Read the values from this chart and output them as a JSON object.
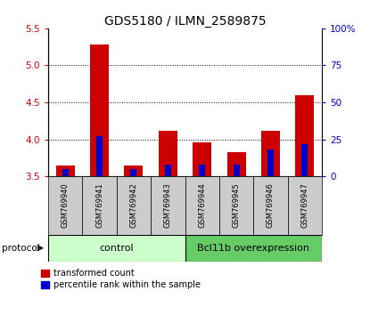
{
  "title": "GDS5180 / ILMN_2589875",
  "samples": [
    "GSM769940",
    "GSM769941",
    "GSM769942",
    "GSM769943",
    "GSM769944",
    "GSM769945",
    "GSM769946",
    "GSM769947"
  ],
  "transformed_count": [
    3.65,
    5.28,
    3.65,
    4.12,
    3.96,
    3.83,
    4.12,
    4.6
  ],
  "percentile_rank_pct": [
    5,
    27,
    5,
    8,
    8,
    8,
    18,
    22
  ],
  "bar_bottom": 3.5,
  "ylim": [
    3.5,
    5.5
  ],
  "right_ylim": [
    0,
    100
  ],
  "right_yticks": [
    0,
    25,
    50,
    75,
    100
  ],
  "right_yticklabels": [
    "0",
    "25",
    "50",
    "75",
    "100%"
  ],
  "left_yticks": [
    3.5,
    4.0,
    4.5,
    5.0,
    5.5
  ],
  "gridlines": [
    4.0,
    4.5,
    5.0
  ],
  "red_color": "#cc0000",
  "blue_color": "#0000cc",
  "control_samples": 4,
  "control_label": "control",
  "treatment_label": "Bcl11b overexpression",
  "protocol_label": "protocol",
  "legend_red": "transformed count",
  "legend_blue": "percentile rank within the sample",
  "control_bg": "#ccffcc",
  "treatment_bg": "#66cc66",
  "sample_label_bg": "#cccccc",
  "red_bar_width": 0.55,
  "blue_bar_width": 0.18,
  "title_fontsize": 10,
  "tick_fontsize": 7.5,
  "label_fontsize": 7.5
}
